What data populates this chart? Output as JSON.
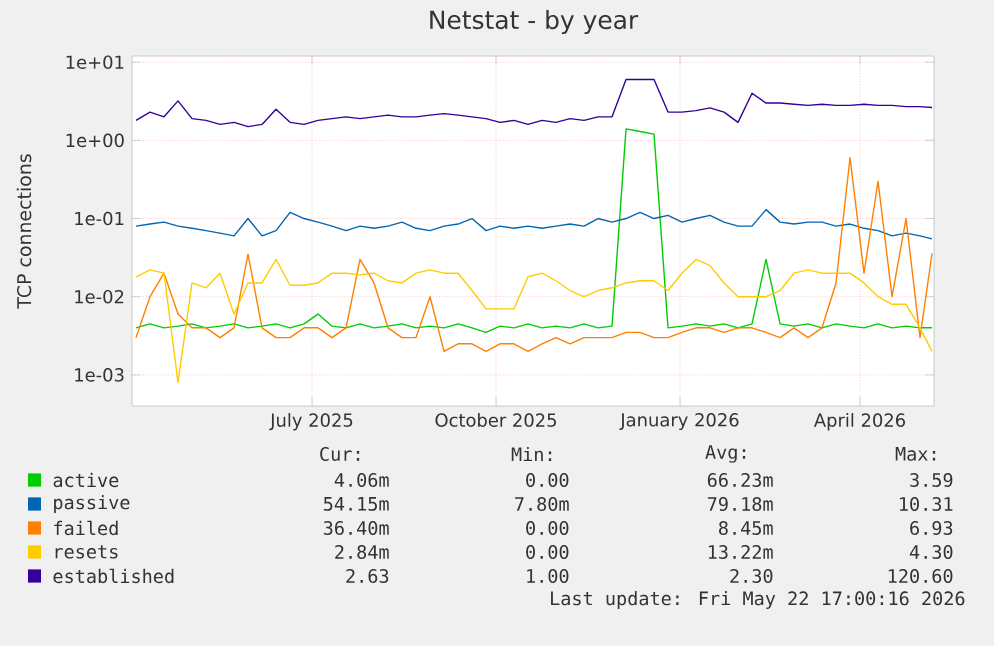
{
  "chart_data": {
    "type": "line",
    "title": "Netstat - by year",
    "ylabel": "TCP connections",
    "xlim": [
      "2025-04-17",
      "2026-05-23"
    ],
    "xticks": [
      {
        "value": "2025-07-16",
        "label": "July 2025"
      },
      {
        "value": "2025-10-16",
        "label": "October 2025"
      },
      {
        "value": "2026-01-16",
        "label": "January 2026"
      },
      {
        "value": "2026-04-16",
        "label": "April 2026"
      }
    ],
    "ylim": [
      0.0004,
      12
    ],
    "yticks": [
      {
        "value": 0.001,
        "label": "1e-03"
      },
      {
        "value": 0.01,
        "label": "1e-02"
      },
      {
        "value": 0.1,
        "label": "1e-01"
      },
      {
        "value": 1,
        "label": "1e+00"
      },
      {
        "value": 10,
        "label": "1e+01"
      }
    ],
    "log": true,
    "grid": true,
    "legend": "bottom",
    "marker": "none",
    "x": [
      "2025-04-19",
      "2025-04-26",
      "2025-05-03",
      "2025-05-10",
      "2025-05-17",
      "2025-05-24",
      "2025-05-31",
      "2025-06-07",
      "2025-06-14",
      "2025-06-21",
      "2025-06-28",
      "2025-07-05",
      "2025-07-12",
      "2025-07-19",
      "2025-07-26",
      "2025-08-02",
      "2025-08-09",
      "2025-08-16",
      "2025-08-23",
      "2025-08-30",
      "2025-09-06",
      "2025-09-13",
      "2025-09-20",
      "2025-09-27",
      "2025-10-04",
      "2025-10-11",
      "2025-10-18",
      "2025-10-25",
      "2025-11-01",
      "2025-11-08",
      "2025-11-15",
      "2025-11-22",
      "2025-11-29",
      "2025-12-06",
      "2025-12-13",
      "2025-12-20",
      "2025-12-27",
      "2026-01-03",
      "2026-01-10",
      "2026-01-17",
      "2026-01-24",
      "2026-01-31",
      "2026-02-07",
      "2026-02-14",
      "2026-02-21",
      "2026-02-28",
      "2026-03-07",
      "2026-03-14",
      "2026-03-21",
      "2026-03-28",
      "2026-04-04",
      "2026-04-11",
      "2026-04-18",
      "2026-04-25",
      "2026-05-02",
      "2026-05-09",
      "2026-05-16",
      "2026-05-22"
    ],
    "series": [
      {
        "name": "active",
        "color": "#00cc00",
        "values": [
          0.004,
          0.0045,
          0.004,
          0.0042,
          0.0045,
          0.004,
          0.0042,
          0.0045,
          0.004,
          0.0042,
          0.0045,
          0.004,
          0.0045,
          0.006,
          0.0042,
          0.004,
          0.0045,
          0.004,
          0.0042,
          0.0045,
          0.004,
          0.0042,
          0.004,
          0.0045,
          0.004,
          0.0035,
          0.0042,
          0.004,
          0.0045,
          0.004,
          0.0042,
          0.004,
          0.0045,
          0.004,
          0.0042,
          1.4,
          1.3,
          1.2,
          0.004,
          0.0042,
          0.0045,
          0.0042,
          0.0045,
          0.004,
          0.0045,
          0.03,
          0.0045,
          0.0042,
          0.0045,
          0.004,
          0.0045,
          0.0042,
          0.004,
          0.0045,
          0.004,
          0.0042,
          0.004,
          0.004
        ]
      },
      {
        "name": "passive",
        "color": "#0066b3",
        "values": [
          0.08,
          0.085,
          0.09,
          0.08,
          0.075,
          0.07,
          0.065,
          0.06,
          0.1,
          0.06,
          0.07,
          0.12,
          0.1,
          0.09,
          0.08,
          0.07,
          0.08,
          0.075,
          0.08,
          0.09,
          0.075,
          0.07,
          0.08,
          0.085,
          0.1,
          0.07,
          0.08,
          0.075,
          0.08,
          0.075,
          0.08,
          0.085,
          0.08,
          0.1,
          0.09,
          0.1,
          0.12,
          0.1,
          0.11,
          0.09,
          0.1,
          0.11,
          0.09,
          0.08,
          0.08,
          0.13,
          0.09,
          0.085,
          0.09,
          0.09,
          0.08,
          0.085,
          0.075,
          0.07,
          0.06,
          0.065,
          0.06,
          0.055
        ]
      },
      {
        "name": "failed",
        "color": "#ff8000",
        "values": [
          0.003,
          0.01,
          0.02,
          0.006,
          0.004,
          0.004,
          0.003,
          0.004,
          0.035,
          0.004,
          0.003,
          0.003,
          0.004,
          0.004,
          0.003,
          0.004,
          0.03,
          0.015,
          0.004,
          0.003,
          0.003,
          0.01,
          0.002,
          0.0025,
          0.0025,
          0.002,
          0.0025,
          0.0025,
          0.002,
          0.0025,
          0.003,
          0.0025,
          0.003,
          0.003,
          0.003,
          0.0035,
          0.0035,
          0.003,
          0.003,
          0.0035,
          0.004,
          0.004,
          0.0035,
          0.004,
          0.004,
          0.0035,
          0.003,
          0.004,
          0.003,
          0.004,
          0.015,
          0.6,
          0.02,
          0.3,
          0.01,
          0.1,
          0.003,
          0.036
        ]
      },
      {
        "name": "resets",
        "color": "#ffcc00",
        "values": [
          0.018,
          0.022,
          0.02,
          0.0008,
          0.015,
          0.013,
          0.02,
          0.006,
          0.015,
          0.015,
          0.03,
          0.014,
          0.014,
          0.015,
          0.02,
          0.02,
          0.019,
          0.02,
          0.016,
          0.015,
          0.02,
          0.022,
          0.02,
          0.02,
          0.012,
          0.007,
          0.007,
          0.007,
          0.018,
          0.02,
          0.016,
          0.012,
          0.01,
          0.012,
          0.013,
          0.015,
          0.016,
          0.016,
          0.012,
          0.02,
          0.03,
          0.025,
          0.015,
          0.01,
          0.01,
          0.01,
          0.012,
          0.02,
          0.022,
          0.02,
          0.02,
          0.02,
          0.015,
          0.01,
          0.008,
          0.008,
          0.004,
          0.002
        ]
      },
      {
        "name": "established",
        "color": "#330099",
        "values": [
          1.8,
          2.3,
          2.0,
          3.2,
          1.9,
          1.8,
          1.6,
          1.7,
          1.5,
          1.6,
          2.5,
          1.7,
          1.6,
          1.8,
          1.9,
          2.0,
          1.9,
          2.0,
          2.1,
          2.0,
          2.0,
          2.1,
          2.2,
          2.1,
          2.0,
          1.9,
          1.7,
          1.8,
          1.6,
          1.8,
          1.7,
          1.9,
          1.8,
          2.0,
          2.0,
          6.0,
          6.0,
          6.0,
          2.3,
          2.3,
          2.4,
          2.6,
          2.3,
          1.7,
          4.0,
          3.0,
          3.0,
          2.9,
          2.8,
          2.9,
          2.8,
          2.8,
          2.9,
          2.8,
          2.8,
          2.7,
          2.7,
          2.63
        ]
      }
    ],
    "annotations": [
      "Cur:",
      "Min:",
      "Avg:",
      "Max:",
      "4.06m",
      "0.00",
      "66.23m",
      "3.59",
      "54.15m",
      "7.80m",
      "79.18m",
      "10.31",
      "36.40m",
      "0.00",
      "8.45m",
      "6.93",
      "2.84m",
      "0.00",
      "13.22m",
      "4.30",
      "2.63",
      "1.00",
      "2.30",
      "120.60",
      "Last update: Fri May 22 17:00:16 2026"
    ]
  }
}
